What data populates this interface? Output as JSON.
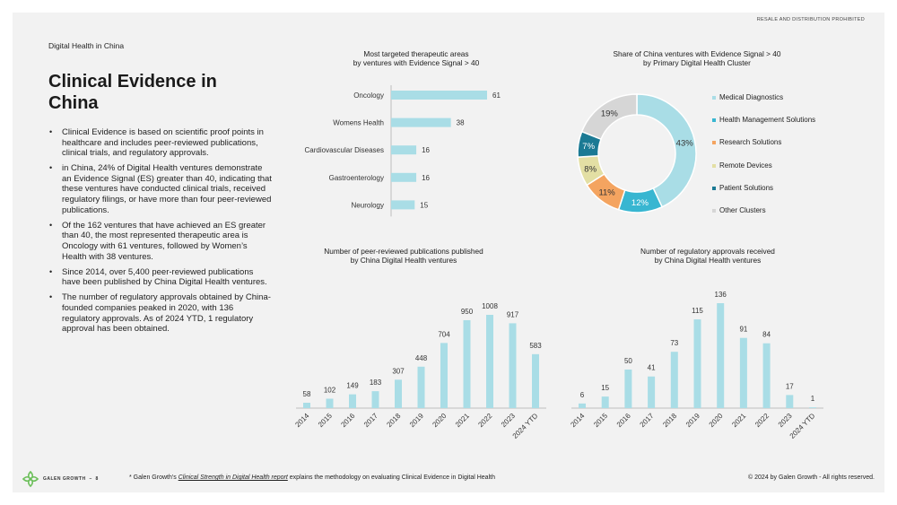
{
  "header": {
    "notice": "RESALE AND DISTRIBUTION PROHIBITED",
    "section": "Digital Health in China",
    "title": "Clinical Evidence in China"
  },
  "bullets": [
    "Clinical Evidence is based on scientific proof points in healthcare and includes peer-reviewed publications, clinical trials, and regulatory approvals.",
    "in China, 24% of Digital Health ventures demonstrate an Evidence Signal (ES) greater than 40, indicating that these ventures have conducted clinical trials, received regulatory filings, or have more than four peer-reviewed publications.",
    "Of the 162 ventures that have achieved an ES greater than 40, the most represented therapeutic area is Oncology with 61 ventures, followed by Women’s Health with 38 ventures.",
    "Since 2014, over 5,400 peer-reviewed publications have been published by China Digital Health ventures.",
    "The number of regulatory approvals obtained by China-founded companies peaked in 2020, with 136 regulatory approvals. As of 2024 YTD, 1 regulatory approval has been obtained."
  ],
  "colors": {
    "bar": "#a9dde6",
    "donut": [
      "#a9dde6",
      "#38b6d1",
      "#f4a460",
      "#e3dfa4",
      "#1b7a94",
      "#d6d6d6"
    ]
  },
  "chart_data": [
    {
      "id": "therapeutic",
      "type": "bar",
      "orientation": "horizontal",
      "title": [
        "Most targeted therapeutic areas",
        "by ventures with Evidence Signal > 40"
      ],
      "categories": [
        "Oncology",
        "Womens Health",
        "Cardiovascular Diseases",
        "Gastroenterology",
        "Neurology"
      ],
      "values": [
        61,
        38,
        16,
        16,
        15
      ]
    },
    {
      "id": "cluster",
      "type": "pie",
      "title": [
        "Share of China ventures with Evidence Signal > 40",
        "by Primary Digital Health Cluster"
      ],
      "labels": [
        "Medical Diagnostics",
        "Health Management Solutions",
        "Research Solutions",
        "Remote Devices",
        "Patient Solutions",
        "Other Clusters"
      ],
      "values": [
        43,
        12,
        11,
        8,
        7,
        19
      ],
      "value_labels": [
        "43%",
        "12%",
        "11%",
        "8%",
        "7%",
        "19%"
      ]
    },
    {
      "id": "publications",
      "type": "bar",
      "title": [
        "Number of peer-reviewed publications published",
        "by China Digital Health ventures"
      ],
      "categories": [
        "2014",
        "2015",
        "2016",
        "2017",
        "2018",
        "2019",
        "2020",
        "2021",
        "2022",
        "2023",
        "2024 YTD"
      ],
      "values": [
        58,
        102,
        149,
        183,
        307,
        448,
        704,
        950,
        1008,
        917,
        583
      ]
    },
    {
      "id": "approvals",
      "type": "bar",
      "title": [
        "Number of regulatory approvals received",
        "by China Digital Health ventures"
      ],
      "categories": [
        "2014",
        "2015",
        "2016",
        "2017",
        "2018",
        "2019",
        "2020",
        "2021",
        "2022",
        "2023",
        "2024 YTD"
      ],
      "values": [
        6,
        15,
        50,
        41,
        73,
        115,
        136,
        91,
        84,
        17,
        1
      ]
    }
  ],
  "footer": {
    "brand": "GALEN GROWTH",
    "page_number": "8",
    "footnote_prefix": "* Galen Growth's",
    "footnote_link": "Clinical Strength in Digital Health report",
    "footnote_suffix": "explains the methodology on evaluating Clinical Evidence in Digital Health",
    "copyright": "© 2024 by Galen Growth  - All rights reserved."
  }
}
